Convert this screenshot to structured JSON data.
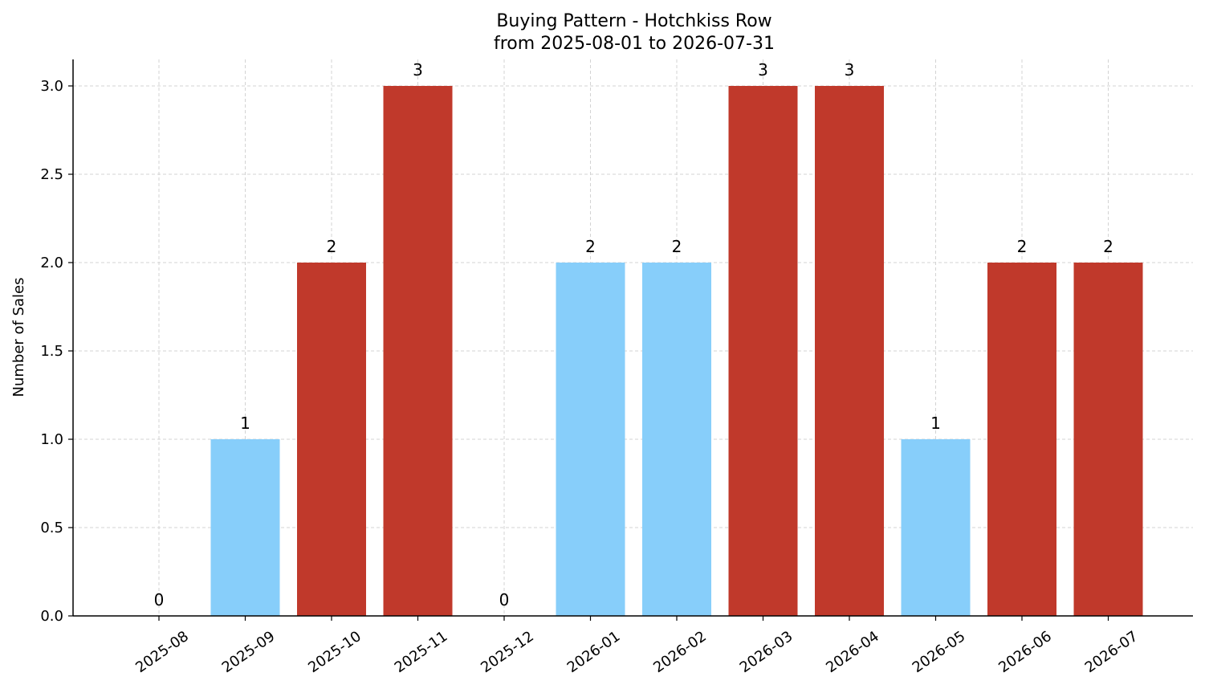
{
  "chart_data": {
    "type": "bar",
    "title": "Buying Pattern - Hotchkiss Row",
    "subtitle": "from 2025-08-01 to 2026-07-31",
    "xlabel": "",
    "ylabel": "Number of Sales",
    "categories": [
      "2025-08",
      "2025-09",
      "2025-10",
      "2025-11",
      "2025-12",
      "2026-01",
      "2026-02",
      "2026-03",
      "2026-04",
      "2026-05",
      "2026-06",
      "2026-07"
    ],
    "values": [
      0,
      1,
      2,
      3,
      0,
      2,
      2,
      3,
      3,
      1,
      2,
      2
    ],
    "bar_colors": [
      "#c0392b",
      "#87cefa",
      "#c0392b",
      "#c0392b",
      "#c0392b",
      "#87cefa",
      "#87cefa",
      "#c0392b",
      "#c0392b",
      "#87cefa",
      "#c0392b",
      "#c0392b"
    ],
    "data_labels": [
      "0",
      "1",
      "2",
      "3",
      "0",
      "2",
      "2",
      "3",
      "3",
      "1",
      "2",
      "2"
    ],
    "y_ticks": [
      "0.0",
      "0.5",
      "1.0",
      "1.5",
      "2.0",
      "2.5",
      "3.0"
    ],
    "ylim": [
      0,
      3.15
    ],
    "grid": true,
    "legend": "none"
  }
}
